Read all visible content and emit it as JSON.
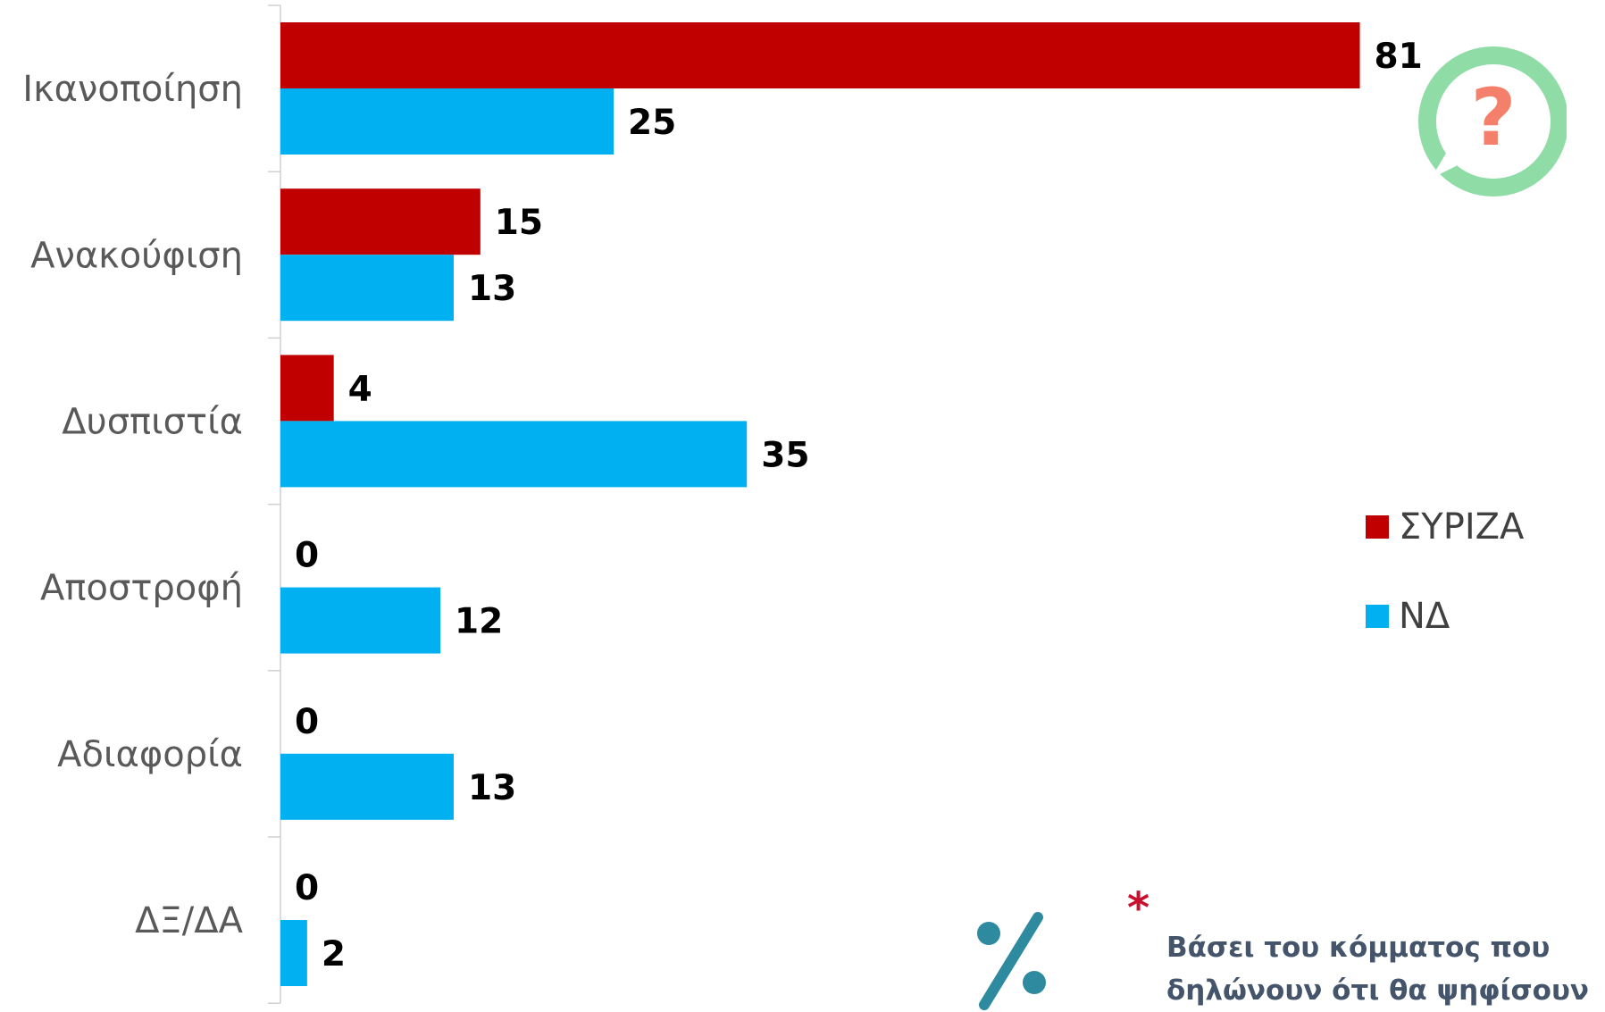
{
  "chart_data": {
    "type": "bar",
    "orientation": "horizontal",
    "categories": [
      "Ικανοποίηση",
      "Ανακούφιση",
      "Δυσπιστία",
      "Αποστροφή",
      "Αδιαφορία",
      "ΔΞ/ΔΑ"
    ],
    "series": [
      {
        "name": "ΣΥΡΙΖΑ",
        "color": "#c00000",
        "values": [
          81,
          15,
          4,
          0,
          0,
          0
        ]
      },
      {
        "name": "ΝΔ",
        "color": "#00b0f0",
        "values": [
          25,
          13,
          35,
          12,
          13,
          2
        ]
      }
    ],
    "xlim": [
      0,
      90
    ],
    "grid": false,
    "legend_position": "right"
  },
  "badge": {
    "icon": "question-speech-bubble-icon",
    "bubble_color": "#8fdca6",
    "mark_color": "#f4806b",
    "symbol": "?"
  },
  "percent_icon": {
    "icon": "percent-icon",
    "color": "#2e8a9e"
  },
  "footnote": {
    "marker": "*",
    "marker_color": "#c8102e",
    "lines": [
      "Βάσει του κόμματος που",
      "δηλώνουν ότι θα ψηφίσουν"
    ]
  }
}
